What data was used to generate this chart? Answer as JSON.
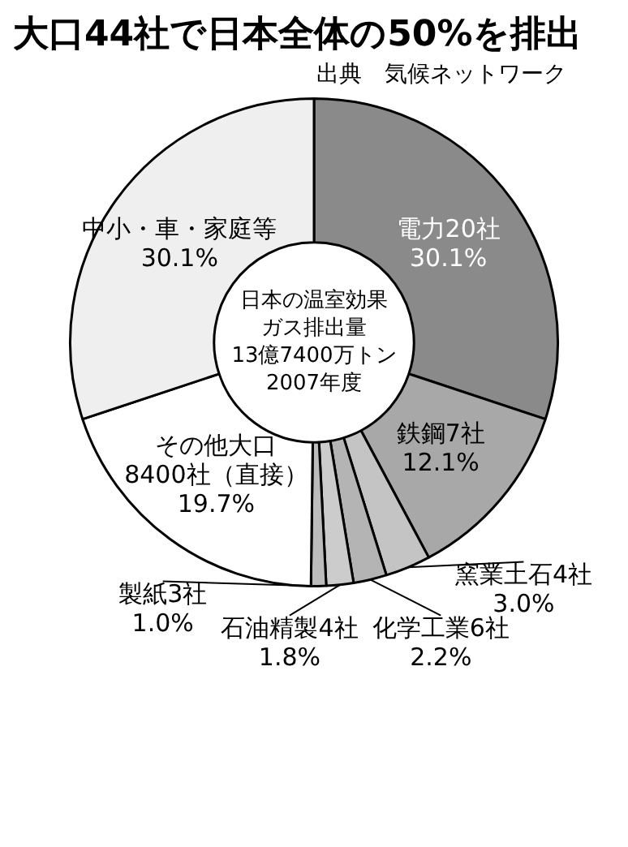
{
  "chart_data": {
    "type": "donut",
    "title": "大口44社で日本全体の50%を排出",
    "categories": [
      "電力20社",
      "鉄鋼7社",
      "窯業土石4社",
      "化学工業6社",
      "石油精製4社",
      "製紙3社",
      "その他大口\n8400社（直接）",
      "中小・車・家庭等"
    ],
    "values": [
      30.1,
      12.1,
      3.0,
      2.2,
      1.8,
      1.0,
      19.7,
      30.1
    ],
    "value_labels": [
      "30.1%",
      "12.1%",
      "3.0%",
      "2.2%",
      "1.8%",
      "1.0%",
      "19.7%",
      "30.1%"
    ],
    "colors": [
      "#8a8a8a",
      "#a8a8a8",
      "#c4c4c4",
      "#b4b4b4",
      "#cccccc",
      "#bcbcbc",
      "#ffffff",
      "#efefef"
    ],
    "annotations": [
      "日本の温室効果ガス排出量\n13億7400万トン\n2007年度",
      "出典　気候ネットワーク"
    ],
    "legend": false
  }
}
